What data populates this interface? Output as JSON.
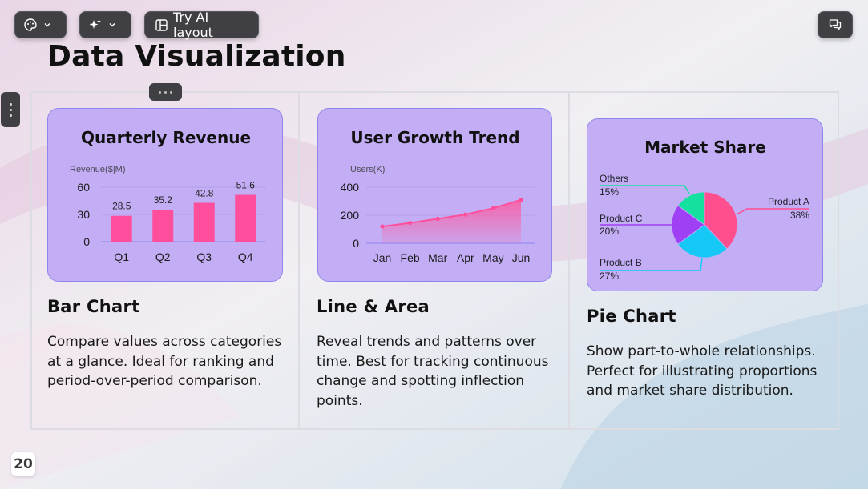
{
  "toolbar": {
    "theme_icon": "palette-icon",
    "ai_icon": "sparkles-icon",
    "layout_icon": "layout-icon",
    "ai_layout_label": "Try AI layout",
    "comments_icon": "comments-icon"
  },
  "slide": {
    "title": "Data Visualization",
    "page_number": "20"
  },
  "cards": [
    {
      "heading": "Bar Chart",
      "description": "Compare values across categories at a glance. Ideal for ranking and period-over-period comparison."
    },
    {
      "heading": "Line & Area",
      "description": "Reveal trends and patterns over time. Best for tracking continuous change and spotting inflection points."
    },
    {
      "heading": "Pie Chart",
      "description": "Show part-to-whole relationships. Perfect for illustrating proportions and market share distribution."
    }
  ],
  "colors": {
    "accent_pink": "#ff4f9c",
    "card_purple": "#c3aef5",
    "pie_pink": "#ff4f8f",
    "pie_blue": "#16c8f5",
    "pie_purple": "#a040f5",
    "pie_green": "#14e0a0"
  },
  "chart_data": [
    {
      "type": "bar",
      "title": "Quarterly Revenue",
      "ylabel": "Revenue($|M)",
      "categories": [
        "Q1",
        "Q2",
        "Q3",
        "Q4"
      ],
      "values": [
        28.5,
        35.2,
        42.8,
        51.6
      ],
      "value_labels": [
        "28.5",
        "35.2",
        "42.8",
        "51.6"
      ],
      "yticks": [
        "60",
        "30",
        "0"
      ],
      "ylim": [
        0,
        60
      ]
    },
    {
      "type": "area",
      "title": "User Growth Trend",
      "ylabel": "Users(K)",
      "categories": [
        "Jan",
        "Feb",
        "Mar",
        "Apr",
        "May",
        "Jun"
      ],
      "values": [
        120,
        145,
        175,
        205,
        250,
        310
      ],
      "yticks": [
        "400",
        "200",
        "0"
      ],
      "ylim": [
        0,
        400
      ]
    },
    {
      "type": "pie",
      "title": "Market Share",
      "slices": [
        {
          "name": "Product A",
          "pct_label": "38%",
          "value": 38
        },
        {
          "name": "Product B",
          "pct_label": "27%",
          "value": 27
        },
        {
          "name": "Product C",
          "pct_label": "20%",
          "value": 20
        },
        {
          "name": "Others",
          "pct_label": "15%",
          "value": 15
        }
      ]
    }
  ]
}
